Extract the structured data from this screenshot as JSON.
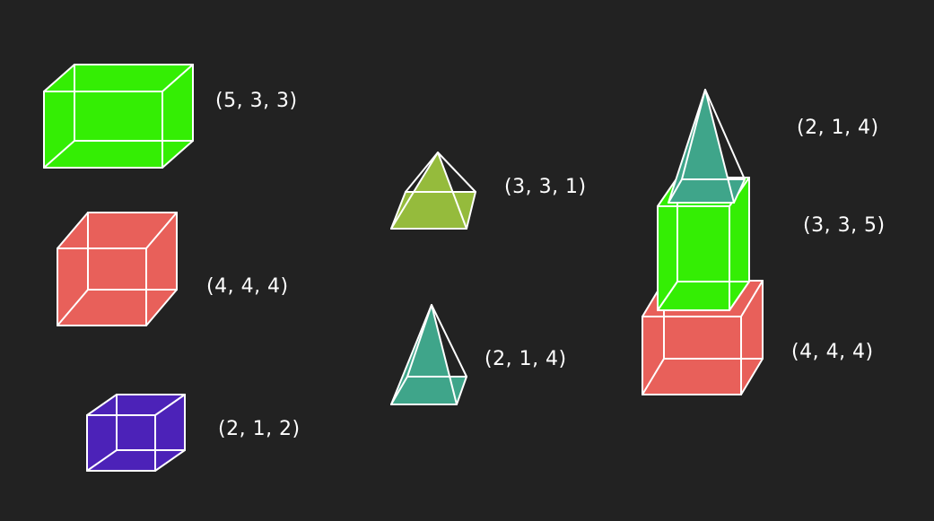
{
  "colors": {
    "background": "#222222",
    "green": "#34ee04",
    "red": "#e8605a",
    "purple": "#4c22b8",
    "olive": "#95bb3c",
    "teal": "#3fa58a",
    "edge": "#ffffff"
  },
  "shapes": [
    {
      "id": "green-box",
      "kind": "box",
      "color": "green",
      "label": "(5, 3, 3)"
    },
    {
      "id": "red-cube",
      "kind": "box",
      "color": "red",
      "label": "(4, 4, 4)"
    },
    {
      "id": "purple-box",
      "kind": "box",
      "color": "purple",
      "label": "(2, 1, 2)"
    },
    {
      "id": "olive-pyramid",
      "kind": "pyramid",
      "color": "olive",
      "label": "(3, 3, 1)"
    },
    {
      "id": "teal-pyramid",
      "kind": "pyramid",
      "color": "teal",
      "label": "(2, 1, 4)"
    },
    {
      "id": "stack-top-pyramid",
      "kind": "pyramid",
      "color": "teal",
      "label": "(2, 1, 4)"
    },
    {
      "id": "stack-middle-box",
      "kind": "box",
      "color": "green",
      "label": "(3, 3, 5)"
    },
    {
      "id": "stack-bottom-cube",
      "kind": "box",
      "color": "red",
      "label": "(4, 4, 4)"
    }
  ]
}
